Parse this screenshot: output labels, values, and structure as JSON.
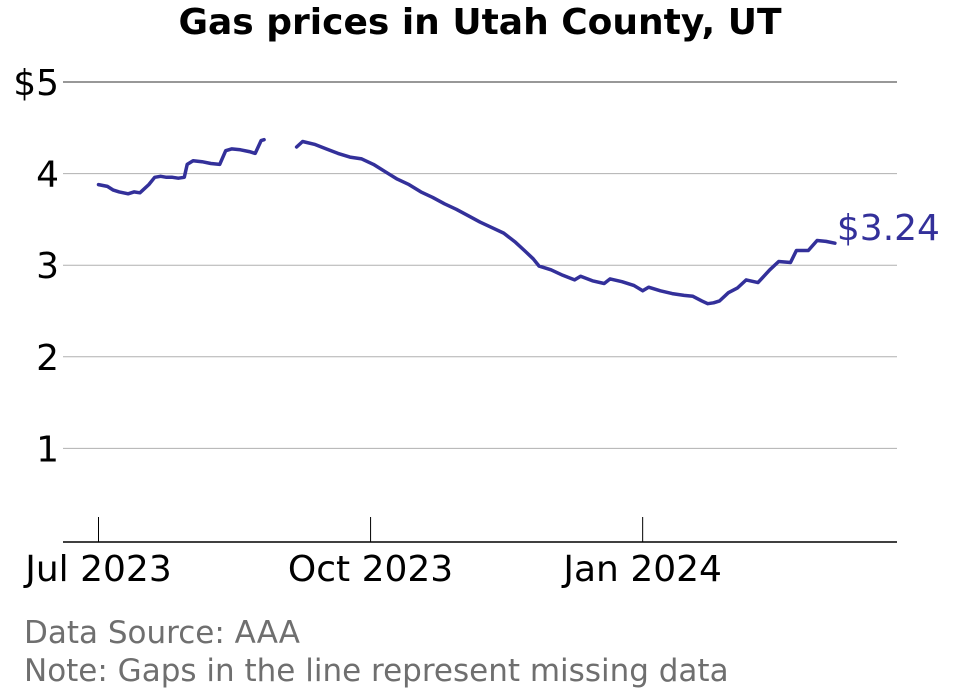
{
  "title": "Gas prices in Utah County, UT",
  "footer": {
    "source": "Data Source: AAA",
    "note": "Note: Gaps in the line represent missing data"
  },
  "colors": {
    "series": "#33309a",
    "gridline": "#b0b0b0",
    "top_gridline": "#777777",
    "axis": "#000000",
    "footer_text": "#6f6f6f"
  },
  "chart_data": {
    "type": "line",
    "title": "Gas prices in Utah County, UT",
    "xlabel": "",
    "ylabel": "",
    "ylim": [
      0,
      5
    ],
    "xlim": [
      "2023-06-19",
      "2024-03-27"
    ],
    "grid": true,
    "y_ticks": [
      {
        "value": 1,
        "label": "1"
      },
      {
        "value": 2,
        "label": "2"
      },
      {
        "value": 3,
        "label": "3"
      },
      {
        "value": 4,
        "label": "4"
      },
      {
        "value": 5,
        "label": "$5"
      }
    ],
    "x_ticks": [
      {
        "date": "2023-07-01",
        "label": "Jul 2023"
      },
      {
        "date": "2023-10-01",
        "label": "Oct 2023"
      },
      {
        "date": "2024-01-01",
        "label": "Jan 2024"
      }
    ],
    "end_label": "$3.24",
    "series": [
      {
        "segments": [
          [
            [
              "2023-07-01",
              3.88
            ],
            [
              "2023-07-04",
              3.86
            ],
            [
              "2023-07-06",
              3.82
            ],
            [
              "2023-07-08",
              3.8
            ],
            [
              "2023-07-11",
              3.78
            ],
            [
              "2023-07-13",
              3.8
            ],
            [
              "2023-07-15",
              3.79
            ],
            [
              "2023-07-16",
              3.82
            ],
            [
              "2023-07-18",
              3.88
            ],
            [
              "2023-07-20",
              3.96
            ],
            [
              "2023-07-22",
              3.97
            ],
            [
              "2023-07-24",
              3.96
            ],
            [
              "2023-07-26",
              3.96
            ],
            [
              "2023-07-28",
              3.95
            ],
            [
              "2023-07-30",
              3.96
            ],
            [
              "2023-07-31",
              4.1
            ],
            [
              "2023-08-02",
              4.14
            ],
            [
              "2023-08-05",
              4.13
            ],
            [
              "2023-08-08",
              4.11
            ],
            [
              "2023-08-11",
              4.1
            ],
            [
              "2023-08-13",
              4.25
            ],
            [
              "2023-08-15",
              4.27
            ],
            [
              "2023-08-18",
              4.26
            ],
            [
              "2023-08-21",
              4.24
            ],
            [
              "2023-08-23",
              4.22
            ],
            [
              "2023-08-25",
              4.36
            ],
            [
              "2023-08-26",
              4.37
            ]
          ],
          [
            [
              "2023-09-06",
              4.29
            ],
            [
              "2023-09-08",
              4.35
            ],
            [
              "2023-09-12",
              4.32
            ],
            [
              "2023-09-16",
              4.27
            ],
            [
              "2023-09-20",
              4.22
            ],
            [
              "2023-09-24",
              4.18
            ],
            [
              "2023-09-28",
              4.16
            ],
            [
              "2023-10-02",
              4.1
            ],
            [
              "2023-10-06",
              4.02
            ],
            [
              "2023-10-10",
              3.94
            ],
            [
              "2023-10-14",
              3.88
            ],
            [
              "2023-10-18",
              3.8
            ],
            [
              "2023-10-22",
              3.74
            ],
            [
              "2023-10-26",
              3.67
            ],
            [
              "2023-10-30",
              3.61
            ],
            [
              "2023-11-03",
              3.54
            ],
            [
              "2023-11-07",
              3.47
            ],
            [
              "2023-11-11",
              3.41
            ],
            [
              "2023-11-15",
              3.35
            ],
            [
              "2023-11-19",
              3.25
            ],
            [
              "2023-11-22",
              3.16
            ],
            [
              "2023-11-25",
              3.07
            ],
            [
              "2023-11-27",
              2.99
            ],
            [
              "2023-12-01",
              2.95
            ],
            [
              "2023-12-05",
              2.89
            ],
            [
              "2023-12-09",
              2.84
            ],
            [
              "2023-12-11",
              2.88
            ],
            [
              "2023-12-15",
              2.83
            ],
            [
              "2023-12-19",
              2.8
            ],
            [
              "2023-12-21",
              2.85
            ],
            [
              "2023-12-25",
              2.82
            ],
            [
              "2023-12-29",
              2.78
            ],
            [
              "2024-01-01",
              2.72
            ],
            [
              "2024-01-03",
              2.76
            ],
            [
              "2024-01-07",
              2.72
            ],
            [
              "2024-01-11",
              2.69
            ],
            [
              "2024-01-15",
              2.67
            ],
            [
              "2024-01-18",
              2.66
            ],
            [
              "2024-01-21",
              2.61
            ],
            [
              "2024-01-23",
              2.58
            ],
            [
              "2024-01-25",
              2.59
            ],
            [
              "2024-01-27",
              2.61
            ],
            [
              "2024-01-30",
              2.7
            ],
            [
              "2024-02-02",
              2.75
            ],
            [
              "2024-02-05",
              2.84
            ],
            [
              "2024-02-09",
              2.81
            ],
            [
              "2024-02-11",
              2.88
            ],
            [
              "2024-02-13",
              2.95
            ],
            [
              "2024-02-16",
              3.04
            ],
            [
              "2024-02-20",
              3.03
            ],
            [
              "2024-02-22",
              3.16
            ],
            [
              "2024-02-26",
              3.16
            ],
            [
              "2024-02-29",
              3.27
            ],
            [
              "2024-03-03",
              3.26
            ],
            [
              "2024-03-06",
              3.24
            ]
          ]
        ]
      }
    ]
  }
}
